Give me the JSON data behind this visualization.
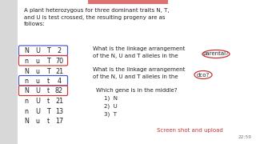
{
  "bg_color": "#f5f5f5",
  "white_panel": "#ffffff",
  "title_text": "A plant heterozygous for three dominant traits N, T,\nand U is test crossed, the resulting progeny are as\nfollows:",
  "table_rows": [
    {
      "cols": [
        "N",
        "U",
        "T",
        "2"
      ],
      "style": "blue_box"
    },
    {
      "cols": [
        "n",
        "u",
        "T",
        "70"
      ],
      "style": "red_box"
    },
    {
      "cols": [
        "N",
        "u",
        "T",
        "21"
      ],
      "style": "normal"
    },
    {
      "cols": [
        "n",
        "u",
        "t",
        "4"
      ],
      "style": "blue_box"
    },
    {
      "cols": [
        "N",
        "U",
        "t",
        "82"
      ],
      "style": "red_box"
    },
    {
      "cols": [
        "n",
        "U",
        "t",
        "21"
      ],
      "style": "normal"
    },
    {
      "cols": [
        "n",
        "U",
        "T",
        "13"
      ],
      "style": "normal"
    },
    {
      "cols": [
        "N",
        "u",
        "t",
        "17"
      ],
      "style": "normal"
    }
  ],
  "q1_main": "What is the linkage arrangement\nof the N, U and T alleles in the",
  "q1_circle_word": "parental?",
  "q2_main": "What is the linkage arrangement\nof the N, U and T alleles in the",
  "q2_circle_word": "dco?",
  "q3_header": "Which gene is in the middle?",
  "q3_items": [
    "1)  N",
    "2)  U",
    "3)  T"
  ],
  "screenshot_text": "Screen shot and upload",
  "timer_text": "22:59",
  "top_bar_color": "#e07070",
  "blue_box_color": "#4455cc",
  "red_box_color": "#cc3333",
  "circle_color": "#cc3333",
  "screenshot_color": "#cc3333",
  "timer_color": "#777777",
  "text_color": "#222222"
}
